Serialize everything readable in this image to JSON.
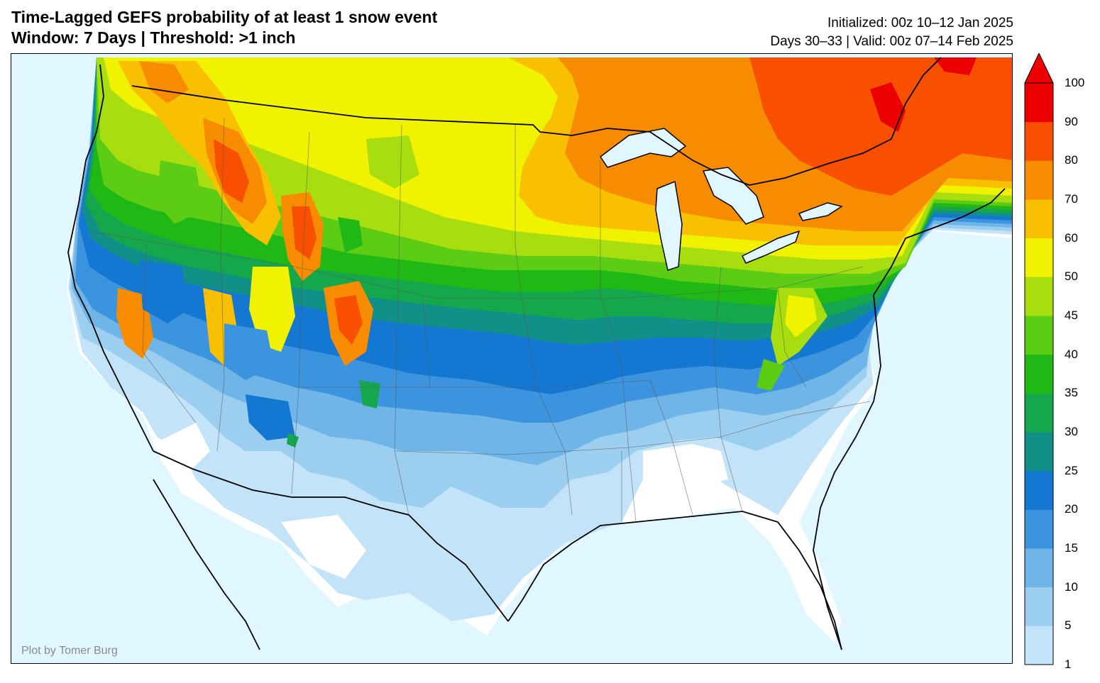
{
  "header": {
    "title_line1": "Time-Lagged GEFS probability of at least 1 snow event",
    "title_line2": "Window: 7 Days | Threshold: >1 inch",
    "initialized": "Initialized: 00z 10–12 Jan 2025",
    "valid": "Days 30–33 | Valid: 00z 07–14 Feb 2025"
  },
  "map": {
    "region": "Contiguous United States",
    "credit": "Plot by Tomer Burg",
    "colors": {
      "ocean": "#e0f7ff",
      "land_zero": "#ffffff",
      "great_lakes": "#e0f7ff"
    }
  },
  "colorbar": {
    "levels": [
      "1",
      "5",
      "10",
      "15",
      "20",
      "25",
      "30",
      "35",
      "40",
      "45",
      "50",
      "60",
      "70",
      "80",
      "90",
      "100"
    ],
    "colors": [
      "#c3e4f8",
      "#9ccfef",
      "#6fb5e8",
      "#3c94de",
      "#1478d2",
      "#119088",
      "#16a64c",
      "#20b814",
      "#5ccc14",
      "#a8de10",
      "#f0f200",
      "#f8c000",
      "#f88c00",
      "#f85000",
      "#ec0000"
    ],
    "extend": "max"
  }
}
